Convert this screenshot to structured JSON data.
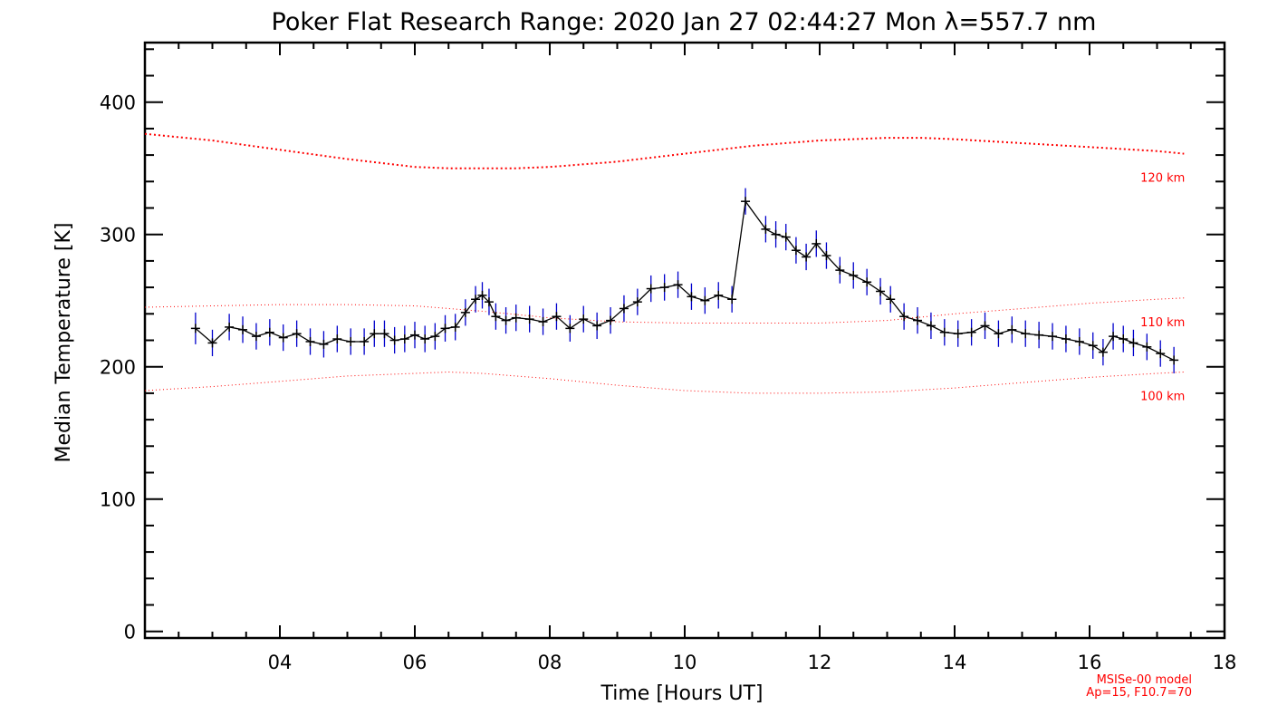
{
  "chart_data": {
    "type": "line",
    "title": "Poker Flat Research Range: 2020 Jan 27 02:44:27 Mon λ=557.7 nm",
    "xlabel": "Time [Hours UT]",
    "ylabel": "Median Temperature [K]",
    "xlim": [
      2.0,
      18.0
    ],
    "ylim": [
      -5,
      445
    ],
    "x_ticks": [
      4,
      6,
      8,
      10,
      12,
      14,
      16,
      18
    ],
    "x_tick_labels": [
      "04",
      "06",
      "08",
      "10",
      "12",
      "14",
      "16",
      "18"
    ],
    "y_ticks": [
      0,
      100,
      200,
      300,
      400
    ],
    "y_tick_labels": [
      "0",
      "100",
      "200",
      "300",
      "400"
    ],
    "grid": false,
    "series": [
      {
        "role": "measurement",
        "color": "#000000",
        "errorbar_color": "#0000cc",
        "x": [
          2.75,
          3.0,
          3.25,
          3.45,
          3.65,
          3.85,
          4.05,
          4.25,
          4.45,
          4.65,
          4.85,
          5.05,
          5.25,
          5.4,
          5.55,
          5.7,
          5.85,
          6.0,
          6.15,
          6.3,
          6.45,
          6.6,
          6.75,
          6.9,
          7.0,
          7.1,
          7.2,
          7.35,
          7.5,
          7.7,
          7.9,
          8.1,
          8.3,
          8.5,
          8.7,
          8.9,
          9.1,
          9.3,
          9.5,
          9.7,
          9.9,
          10.1,
          10.3,
          10.5,
          10.7,
          10.9,
          11.2,
          11.35,
          11.5,
          11.65,
          11.8,
          11.95,
          12.1,
          12.3,
          12.5,
          12.7,
          12.9,
          13.05,
          13.25,
          13.45,
          13.65,
          13.85,
          14.05,
          14.25,
          14.45,
          14.65,
          14.85,
          15.05,
          15.25,
          15.45,
          15.65,
          15.85,
          16.05,
          16.2,
          16.35,
          16.5,
          16.65,
          16.85,
          17.05,
          17.25
        ],
        "y": [
          229,
          218,
          230,
          228,
          223,
          226,
          222,
          225,
          219,
          217,
          221,
          219,
          219,
          225,
          225,
          220,
          221,
          224,
          221,
          223,
          229,
          230,
          241,
          251,
          254,
          249,
          238,
          235,
          237,
          236,
          234,
          238,
          229,
          236,
          231,
          235,
          244,
          249,
          259,
          260,
          262,
          253,
          250,
          254,
          251,
          325,
          304,
          300,
          298,
          288,
          283,
          293,
          284,
          273,
          269,
          264,
          257,
          251,
          238,
          235,
          231,
          226,
          225,
          226,
          231,
          225,
          228,
          225,
          224,
          223,
          221,
          219,
          216,
          211,
          223,
          221,
          218,
          215,
          210,
          205
        ],
        "errors": [
          12,
          10,
          10,
          10,
          10,
          10,
          10,
          10,
          10,
          10,
          10,
          10,
          10,
          10,
          10,
          10,
          10,
          10,
          10,
          10,
          10,
          10,
          10,
          10,
          10,
          10,
          10,
          10,
          10,
          10,
          10,
          10,
          10,
          10,
          10,
          10,
          10,
          10,
          10,
          10,
          10,
          10,
          10,
          10,
          10,
          10,
          10,
          10,
          10,
          10,
          10,
          10,
          10,
          10,
          10,
          10,
          10,
          10,
          10,
          10,
          10,
          10,
          10,
          10,
          10,
          10,
          10,
          10,
          10,
          10,
          10,
          10,
          10,
          10,
          10,
          10,
          10,
          10,
          10,
          10
        ]
      },
      {
        "name": "120 km",
        "role": "model",
        "color": "#ff0000",
        "style": "dotted",
        "x": [
          2.0,
          3.0,
          4.0,
          5.0,
          6.0,
          6.5,
          7.0,
          7.5,
          8.0,
          9.0,
          10.0,
          11.0,
          12.0,
          13.0,
          13.5,
          14.0,
          15.0,
          16.0,
          17.0,
          17.4
        ],
        "y": [
          376,
          371,
          364,
          357,
          351,
          350,
          350,
          350,
          351,
          355,
          361,
          367,
          371,
          373,
          373,
          372,
          369,
          366,
          363,
          361
        ]
      },
      {
        "name": "110 km",
        "role": "model",
        "color": "#ff0000",
        "style": "dotted",
        "x": [
          2.0,
          3.0,
          4.0,
          5.0,
          6.0,
          7.0,
          8.0,
          9.0,
          10.0,
          11.0,
          12.0,
          13.0,
          14.0,
          15.0,
          16.0,
          17.0,
          17.4
        ],
        "y": [
          245,
          246,
          247,
          247,
          246,
          242,
          237,
          234,
          233,
          233,
          233,
          235,
          240,
          244,
          248,
          251,
          252
        ]
      },
      {
        "name": "100 km",
        "role": "model",
        "color": "#ff0000",
        "style": "dotted",
        "x": [
          2.0,
          3.0,
          4.0,
          5.0,
          6.0,
          6.5,
          7.0,
          8.0,
          9.0,
          10.0,
          11.0,
          12.0,
          13.0,
          14.0,
          15.0,
          16.0,
          17.0,
          17.4
        ],
        "y": [
          182,
          185,
          189,
          193,
          195,
          196,
          195,
          191,
          186,
          182,
          180,
          180,
          181,
          184,
          188,
          192,
          195,
          196
        ]
      }
    ],
    "annotations": {
      "model_name": "MSISe-00 model",
      "model_params": "Ap=15, F10.7=70"
    }
  }
}
